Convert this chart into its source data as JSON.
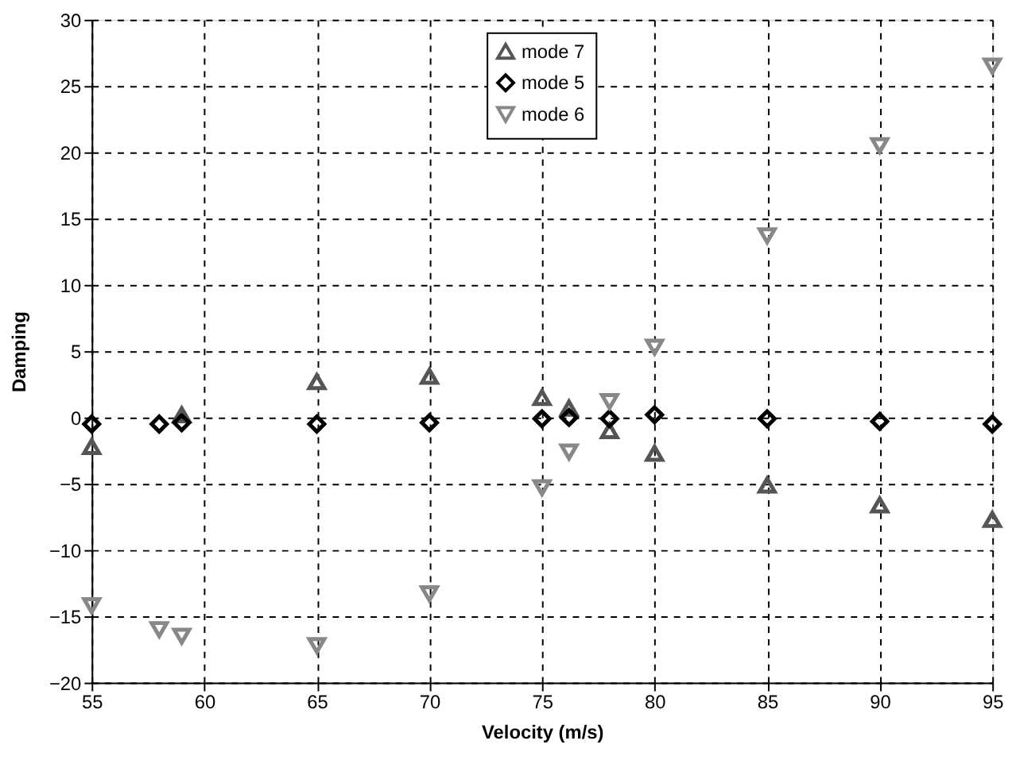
{
  "chart_data": {
    "type": "scatter",
    "xlabel": "Velocity (m/s)",
    "ylabel": "Damping",
    "x": [
      55,
      58,
      59,
      65,
      70,
      75,
      76.2,
      78,
      80,
      85,
      90,
      95
    ],
    "xlim": [
      55,
      95
    ],
    "xticks": [
      55,
      60,
      65,
      70,
      75,
      80,
      85,
      90,
      95
    ],
    "ylim": [
      -20,
      30
    ],
    "yticks": [
      -20,
      -15,
      -10,
      -5,
      0,
      5,
      10,
      15,
      20,
      25,
      30
    ],
    "grid": true,
    "legend": "top",
    "series": [
      {
        "name": "mode 7",
        "color": "#555555",
        "marker": "triangle",
        "values": [
          -2.2,
          null,
          0.2,
          2.7,
          3.1,
          1.5,
          0.7,
          -1,
          -2.7,
          -5.1,
          -6.6,
          -7.7
        ]
      },
      {
        "name": "mode 5",
        "color": "#000000",
        "marker": "diamond",
        "values": [
          -0.5,
          -0.5,
          -0.4,
          -0.5,
          -0.4,
          -0.1,
          0,
          -0.1,
          0.2,
          -0.1,
          -0.3,
          -0.5
        ]
      },
      {
        "name": "mode 6",
        "color": "#888888",
        "marker": "triangle-down",
        "values": [
          -14.2,
          -16,
          -16.5,
          -17.2,
          -13.3,
          -5.3,
          -2.6,
          1.2,
          5.3,
          13.7,
          20.5,
          26.5
        ]
      }
    ]
  }
}
